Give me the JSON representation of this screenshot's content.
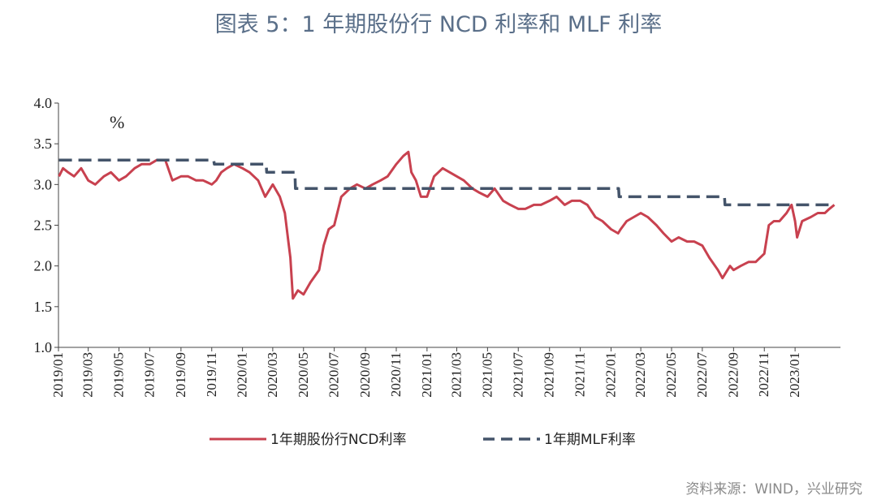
{
  "page_title": "图表 5：1 年期股份行 NCD 利率和 MLF 利率",
  "source_note": "资料来源：WIND，兴业研究",
  "colors": {
    "ncd": "#c8414f",
    "mlf": "#44546a",
    "title": "#5a6f89"
  },
  "chart_data": {
    "type": "line",
    "title": "图表 5：1 年期股份行 NCD 利率和 MLF 利率",
    "unit_label": "%",
    "ylim": [
      1.0,
      4.0
    ],
    "yticks": [
      "1.0",
      "1.5",
      "2.0",
      "2.5",
      "3.0",
      "3.5",
      "4.0"
    ],
    "xlim": [
      "2019-01",
      "2023-04"
    ],
    "xticks": [
      "2019/01",
      "2019/03",
      "2019/05",
      "2019/07",
      "2019/09",
      "2019/11",
      "2020/01",
      "2020/03",
      "2020/05",
      "2020/07",
      "2020/09",
      "2020/11",
      "2021/01",
      "2021/03",
      "2021/05",
      "2021/07",
      "2021/09",
      "2021/11",
      "2022/01",
      "2022/03",
      "2022/05",
      "2022/07",
      "2022/09",
      "2022/11",
      "2023/01"
    ],
    "grid": false,
    "legend_position": "bottom",
    "series": [
      {
        "name": "1年期股份行NCD利率",
        "style": "solid",
        "x": [
          "2019-01-02",
          "2019-01-10",
          "2019-01-20",
          "2019-02-01",
          "2019-02-15",
          "2019-03-01",
          "2019-03-15",
          "2019-04-01",
          "2019-04-15",
          "2019-05-01",
          "2019-05-15",
          "2019-06-01",
          "2019-06-15",
          "2019-06-25",
          "2019-07-01",
          "2019-07-15",
          "2019-08-01",
          "2019-08-15",
          "2019-09-01",
          "2019-09-15",
          "2019-10-01",
          "2019-10-15",
          "2019-11-01",
          "2019-11-10",
          "2019-11-20",
          "2019-12-01",
          "2019-12-15",
          "2020-01-01",
          "2020-01-15",
          "2020-02-01",
          "2020-02-15",
          "2020-03-01",
          "2020-03-15",
          "2020-03-25",
          "2020-04-01",
          "2020-04-05",
          "2020-04-10",
          "2020-04-20",
          "2020-05-01",
          "2020-05-15",
          "2020-06-01",
          "2020-06-10",
          "2020-06-20",
          "2020-07-01",
          "2020-07-15",
          "2020-08-01",
          "2020-08-15",
          "2020-09-01",
          "2020-09-15",
          "2020-10-01",
          "2020-10-15",
          "2020-11-01",
          "2020-11-15",
          "2020-11-25",
          "2020-12-01",
          "2020-12-10",
          "2020-12-20",
          "2021-01-01",
          "2021-01-15",
          "2021-02-01",
          "2021-02-15",
          "2021-03-01",
          "2021-03-15",
          "2021-04-01",
          "2021-04-15",
          "2021-05-01",
          "2021-05-15",
          "2021-06-01",
          "2021-06-15",
          "2021-07-01",
          "2021-07-15",
          "2021-08-01",
          "2021-08-15",
          "2021-09-01",
          "2021-09-15",
          "2021-10-01",
          "2021-10-15",
          "2021-11-01",
          "2021-11-15",
          "2021-12-01",
          "2021-12-15",
          "2022-01-01",
          "2022-01-15",
          "2022-01-20",
          "2022-02-01",
          "2022-02-15",
          "2022-03-01",
          "2022-03-15",
          "2022-04-01",
          "2022-04-15",
          "2022-05-01",
          "2022-05-15",
          "2022-06-01",
          "2022-06-15",
          "2022-07-01",
          "2022-07-15",
          "2022-08-01",
          "2022-08-10",
          "2022-08-15",
          "2022-08-25",
          "2022-09-01",
          "2022-09-15",
          "2022-10-01",
          "2022-10-15",
          "2022-11-01",
          "2022-11-10",
          "2022-11-20",
          "2022-12-01",
          "2022-12-15",
          "2022-12-25",
          "2023-01-01",
          "2023-01-05",
          "2023-01-15",
          "2023-02-01",
          "2023-02-15",
          "2023-03-01",
          "2023-03-10",
          "2023-03-20"
        ],
        "y": [
          3.1,
          3.2,
          3.15,
          3.1,
          3.2,
          3.05,
          3.0,
          3.1,
          3.15,
          3.05,
          3.1,
          3.2,
          3.25,
          3.25,
          3.25,
          3.3,
          3.3,
          3.05,
          3.1,
          3.1,
          3.05,
          3.05,
          3.0,
          3.05,
          3.15,
          3.2,
          3.25,
          3.2,
          3.15,
          3.05,
          2.85,
          3.0,
          2.85,
          2.65,
          2.3,
          2.1,
          1.6,
          1.7,
          1.65,
          1.8,
          1.95,
          2.25,
          2.45,
          2.5,
          2.85,
          2.95,
          3.0,
          2.95,
          3.0,
          3.05,
          3.1,
          3.25,
          3.35,
          3.4,
          3.15,
          3.05,
          2.85,
          2.85,
          3.1,
          3.2,
          3.15,
          3.1,
          3.05,
          2.95,
          2.9,
          2.85,
          2.95,
          2.8,
          2.75,
          2.7,
          2.7,
          2.75,
          2.75,
          2.8,
          2.85,
          2.75,
          2.8,
          2.8,
          2.75,
          2.6,
          2.55,
          2.45,
          2.4,
          2.45,
          2.55,
          2.6,
          2.65,
          2.6,
          2.5,
          2.4,
          2.3,
          2.35,
          2.3,
          2.3,
          2.25,
          2.1,
          1.95,
          1.85,
          1.9,
          2.0,
          1.95,
          2.0,
          2.05,
          2.05,
          2.15,
          2.5,
          2.55,
          2.55,
          2.65,
          2.75,
          2.55,
          2.35,
          2.55,
          2.6,
          2.65,
          2.65,
          2.7,
          2.75
        ]
      },
      {
        "name": "1年期MLF利率",
        "style": "dashed",
        "x": [
          "2019-01-02",
          "2019-11-05",
          "2019-11-06",
          "2020-02-17",
          "2020-02-18",
          "2020-04-14",
          "2020-04-15",
          "2022-01-16",
          "2022-01-17",
          "2022-08-14",
          "2022-08-15",
          "2023-03-20"
        ],
        "y": [
          3.3,
          3.3,
          3.25,
          3.25,
          3.15,
          3.15,
          2.95,
          2.95,
          2.85,
          2.85,
          2.75,
          2.75
        ]
      }
    ]
  }
}
